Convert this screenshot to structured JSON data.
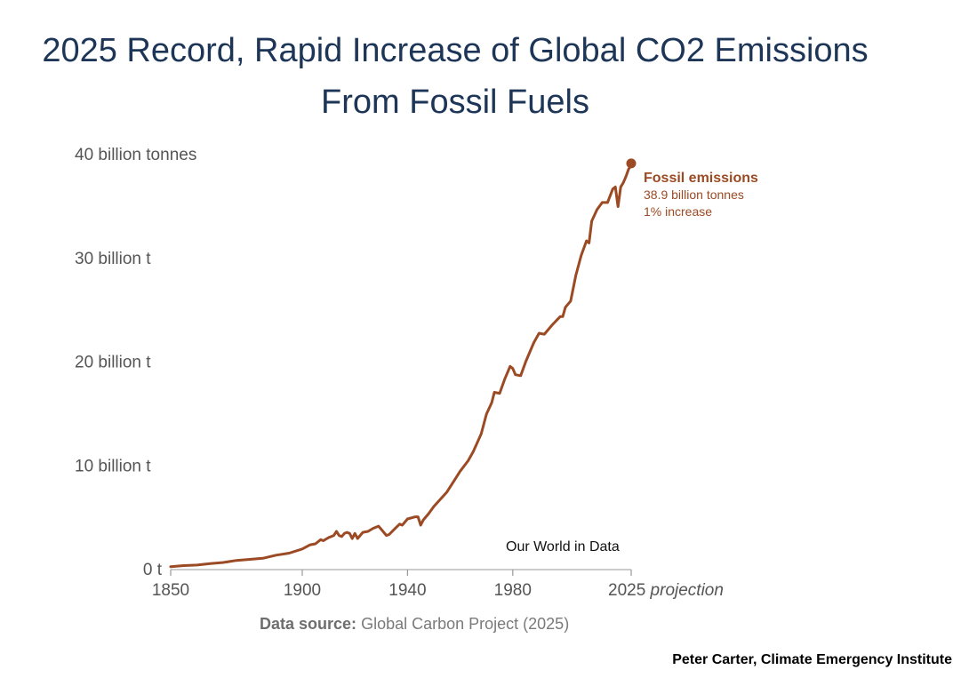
{
  "title": {
    "line1": "2025 Record, Rapid Increase of Global CO2 Emissions",
    "line2": "From Fossil Fuels"
  },
  "credit": "Peter Carter, Climate Emergency Institute",
  "source": {
    "label": "Data source:",
    "text": "Global Carbon Project (2025)"
  },
  "colors": {
    "series": "#9b4a24",
    "title": "#1d3557",
    "axis_text": "#555555"
  },
  "chart_data": {
    "type": "line",
    "title": "2025 Record, Rapid Increase of Global CO2 Emissions From Fossil Fuels",
    "xlabel": "",
    "ylabel": "",
    "xlim": [
      1850,
      2025
    ],
    "ylim": [
      0,
      40
    ],
    "grid": false,
    "x_ticks": [
      {
        "value": 1850,
        "label": "1850"
      },
      {
        "value": 1900,
        "label": "1900"
      },
      {
        "value": 1940,
        "label": "1940"
      },
      {
        "value": 1980,
        "label": "1980"
      },
      {
        "value": 2025,
        "label": "2025",
        "suffix": "projection"
      }
    ],
    "y_ticks": [
      {
        "value": 0,
        "label": "0 t"
      },
      {
        "value": 10,
        "label": "10 billion t"
      },
      {
        "value": 20,
        "label": "20 billion t"
      },
      {
        "value": 30,
        "label": "30 billion t"
      },
      {
        "value": 40,
        "label": "40 billion tonnes"
      }
    ],
    "watermark": "Our World in Data",
    "series": [
      {
        "name": "Fossil emissions",
        "annotation": {
          "label": "Fossil emissions",
          "value_text": "38.9 billion tonnes",
          "change_text": "1% increase"
        },
        "x": [
          1850,
          1855,
          1860,
          1865,
          1870,
          1875,
          1880,
          1885,
          1890,
          1895,
          1900,
          1903,
          1905,
          1907,
          1908,
          1910,
          1912,
          1913,
          1914,
          1915,
          1916,
          1917,
          1918,
          1919,
          1920,
          1921,
          1923,
          1925,
          1927,
          1929,
          1930,
          1932,
          1933,
          1935,
          1937,
          1938,
          1940,
          1943,
          1944,
          1945,
          1946,
          1948,
          1950,
          1955,
          1960,
          1963,
          1965,
          1968,
          1970,
          1972,
          1973,
          1975,
          1977,
          1979,
          1980,
          1981,
          1983,
          1985,
          1988,
          1990,
          1992,
          1995,
          1998,
          1999,
          2000,
          2002,
          2004,
          2006,
          2008,
          2009,
          2010,
          2012,
          2014,
          2016,
          2018,
          2019,
          2020,
          2021,
          2022,
          2023,
          2024,
          2025
        ],
        "values": [
          0.2,
          0.3,
          0.35,
          0.5,
          0.6,
          0.8,
          0.9,
          1.0,
          1.3,
          1.5,
          1.9,
          2.3,
          2.4,
          2.8,
          2.7,
          3.0,
          3.2,
          3.6,
          3.2,
          3.1,
          3.4,
          3.5,
          3.4,
          2.9,
          3.4,
          2.9,
          3.5,
          3.6,
          3.9,
          4.1,
          3.8,
          3.2,
          3.3,
          3.8,
          4.3,
          4.2,
          4.8,
          5.0,
          5.0,
          4.2,
          4.7,
          5.3,
          6.0,
          7.4,
          9.4,
          10.4,
          11.3,
          13.0,
          14.9,
          16.0,
          17.0,
          16.9,
          18.3,
          19.5,
          19.3,
          18.7,
          18.6,
          20.0,
          21.8,
          22.7,
          22.6,
          23.5,
          24.3,
          24.3,
          25.2,
          25.8,
          28.3,
          30.2,
          31.6,
          31.4,
          33.5,
          34.6,
          35.3,
          35.3,
          36.6,
          36.8,
          34.9,
          36.8,
          37.2,
          37.8,
          38.5,
          38.9
        ]
      }
    ]
  }
}
